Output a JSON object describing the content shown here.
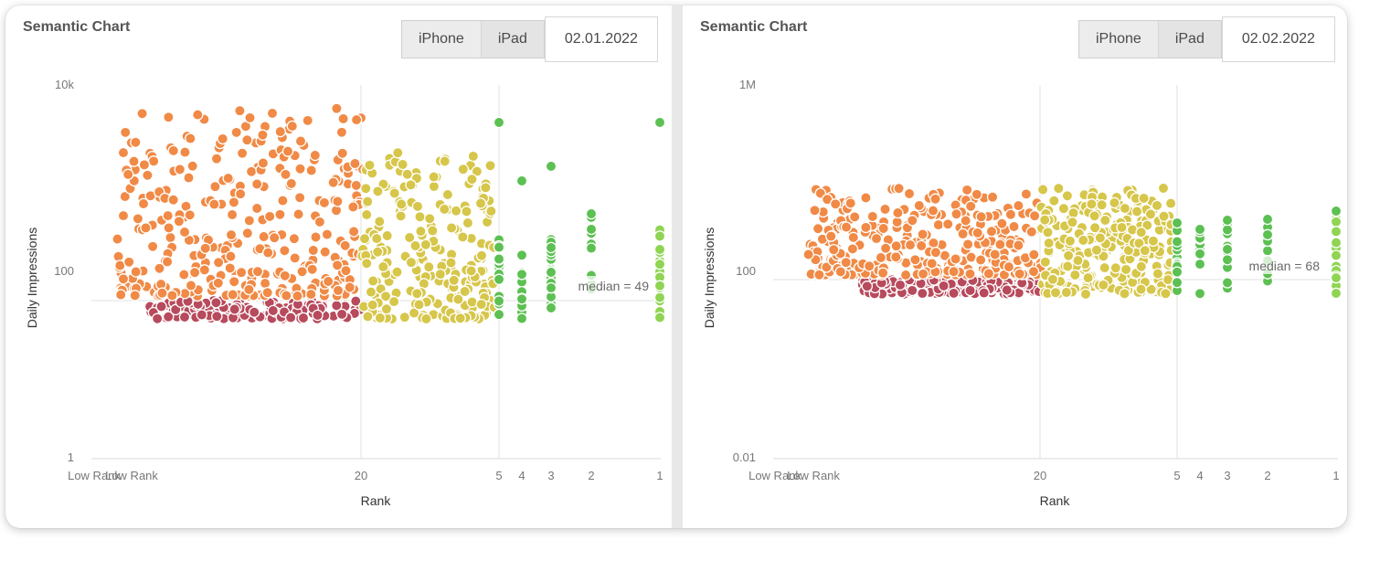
{
  "colors": {
    "low": "#b74a5c",
    "top100": "#f08a46",
    "top20": "#d6c64a",
    "top5": "#5cc052",
    "top1": "#8fd452"
  },
  "panels": [
    {
      "title": "Semantic Chart",
      "tabs": [
        "iPhone",
        "iPad"
      ],
      "active_tab": "iPhone",
      "date": "02.01.2022",
      "median_label": "median = 49"
    },
    {
      "title": "Semantic Chart",
      "tabs": [
        "iPhone",
        "iPad"
      ],
      "active_tab": "iPhone",
      "date": "02.02.2022",
      "median_label": "median = 68"
    }
  ],
  "chart_data": [
    {
      "type": "scatter",
      "title": "Semantic Chart",
      "xlabel": "Rank",
      "ylabel": "Daily Impressions",
      "y_scale": "log",
      "ylim": [
        1,
        10000
      ],
      "y_ticks": [
        "1",
        "100",
        "10k"
      ],
      "x_ticks": [
        "Low Rank",
        "Low Rank",
        "20",
        "5",
        "4",
        "3",
        "2",
        "1"
      ],
      "median": 49,
      "grid": true,
      "legend": "none"
    },
    {
      "type": "scatter",
      "title": "Semantic Chart",
      "xlabel": "Rank",
      "ylabel": "Daily Impressions",
      "y_scale": "log",
      "ylim": [
        0.01,
        1000000
      ],
      "y_ticks": [
        "0.01",
        "100",
        "1M"
      ],
      "x_ticks": [
        "Low Rank",
        "Low Rank",
        "20",
        "5",
        "4",
        "3",
        "2",
        "1"
      ],
      "median": 68,
      "grid": true,
      "legend": "none"
    }
  ]
}
